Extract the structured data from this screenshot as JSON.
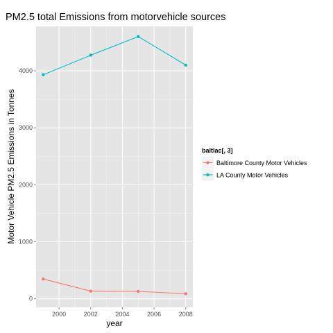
{
  "chart_data": {
    "type": "line",
    "title": "PM2.5 total Emissions from motorvehicle sources",
    "xlabel": "year",
    "ylabel": "Motor Vehicle PM2.5 Emissions in Tonnes",
    "x": [
      1999,
      2002,
      2005,
      2008
    ],
    "xlim": [
      1998.55,
      2008.45
    ],
    "ylim": [
      -150,
      4780
    ],
    "xticks": [
      2000,
      2002,
      2004,
      2006,
      2008
    ],
    "yticks": [
      0,
      1000,
      2000,
      3000,
      4000
    ],
    "grid": true,
    "legend": {
      "title": "baltlac[, 3]",
      "position": "right"
    },
    "series": [
      {
        "name": "Baltimore County Motor Vehicles",
        "color": "#F8766D",
        "values": [
          347,
          134,
          130,
          89
        ]
      },
      {
        "name": "LA County Motor Vehicles",
        "color": "#00BFC4",
        "values": [
          3931,
          4274,
          4601,
          4101
        ]
      }
    ]
  },
  "colors": {
    "panel_background": "#e5e5e5",
    "grid_major": "#ffffff",
    "grid_minor": "#f2f2f2",
    "legend_key_background": "#f2f2f2"
  }
}
